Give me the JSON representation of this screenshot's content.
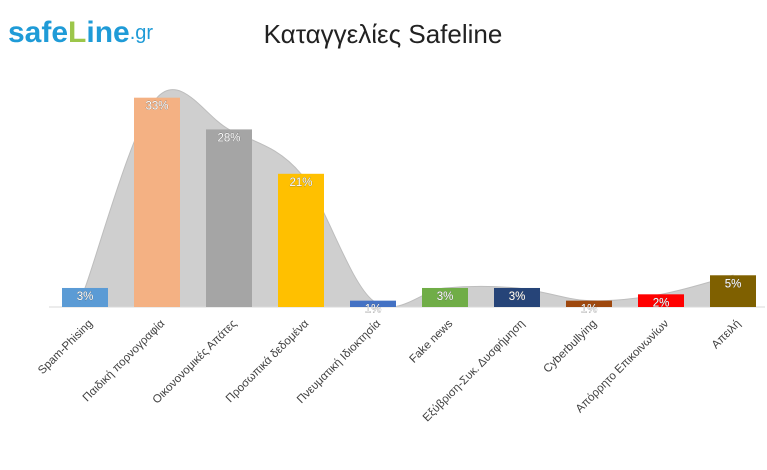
{
  "chart_data": {
    "type": "bar",
    "title": "Καταγγελίες Safeline",
    "logo": [
      "safe",
      "L",
      "ine",
      ".gr"
    ],
    "categories": [
      "Spam-Phising",
      "Παιδική πορνογραφία",
      "Οικονονομικές Απάτες",
      "Προσωπικά δεδομένα",
      "Πνευματική Ιδιοκτησία",
      "Fake news",
      "Εξύβριση-Συκ. Δυσφήμηση",
      "Cyberbullying",
      "Απόρρητο Επικοινωνίων",
      "Απειλή"
    ],
    "values": [
      3,
      33,
      28,
      21,
      1,
      3,
      3,
      1,
      2,
      5
    ],
    "value_labels": [
      "3%",
      "33%",
      "28%",
      "21%",
      "1%",
      "3%",
      "3%",
      "1%",
      "2%",
      "5%"
    ],
    "colors": [
      "#5b9bd5",
      "#f4b183",
      "#a5a5a5",
      "#ffc000",
      "#4472c4",
      "#70ad47",
      "#264478",
      "#9e480e",
      "#ff0000",
      "#7f6000"
    ],
    "area_color": "#cfcfcf",
    "ylim": [
      0,
      35
    ]
  }
}
